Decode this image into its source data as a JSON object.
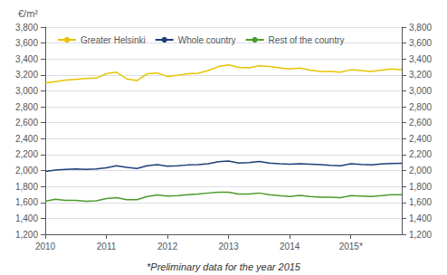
{
  "chart_data": {
    "type": "line",
    "ylabel": "€/m²",
    "annotations": [
      "*Preliminary data for the year 2015"
    ],
    "categories": [
      "2010",
      null,
      null,
      null,
      null,
      null,
      "2011",
      null,
      null,
      null,
      null,
      null,
      "2012",
      null,
      null,
      null,
      null,
      null,
      "2013",
      null,
      null,
      null,
      null,
      null,
      "2014",
      null,
      null,
      null,
      null,
      null,
      "2015*",
      null,
      null,
      null,
      null,
      null
    ],
    "series": [
      {
        "name": "Greater Helsinki",
        "color": "#E8C300",
        "values": [
          3100,
          3115,
          3135,
          3145,
          3155,
          3160,
          3215,
          3235,
          3150,
          3130,
          3215,
          3225,
          3180,
          3195,
          3215,
          3220,
          3255,
          3305,
          3325,
          3295,
          3290,
          3315,
          3305,
          3290,
          3275,
          3285,
          3260,
          3245,
          3245,
          3235,
          3265,
          3255,
          3245,
          3260,
          3275,
          3265
        ]
      },
      {
        "name": "Whole country",
        "color": "#1F3F7A",
        "values": [
          1990,
          2005,
          2015,
          2020,
          2015,
          2020,
          2035,
          2060,
          2040,
          2025,
          2060,
          2075,
          2055,
          2060,
          2070,
          2075,
          2085,
          2110,
          2120,
          2095,
          2100,
          2115,
          2095,
          2085,
          2080,
          2085,
          2080,
          2075,
          2065,
          2060,
          2085,
          2078,
          2072,
          2082,
          2088,
          2090
        ]
      },
      {
        "name": "Rest of the country",
        "color": "#4C9A2A",
        "values": [
          1615,
          1640,
          1625,
          1625,
          1615,
          1620,
          1648,
          1660,
          1635,
          1635,
          1675,
          1695,
          1680,
          1685,
          1698,
          1705,
          1718,
          1728,
          1728,
          1705,
          1705,
          1718,
          1698,
          1685,
          1675,
          1688,
          1675,
          1665,
          1665,
          1660,
          1685,
          1680,
          1675,
          1685,
          1698,
          1698
        ]
      }
    ],
    "ylim": [
      1200,
      3800
    ],
    "yticks": [
      1200,
      1400,
      1600,
      1800,
      2000,
      2200,
      2400,
      2600,
      2800,
      3000,
      3200,
      3400,
      3600,
      3800
    ],
    "y2lim": [
      1200,
      3800
    ],
    "y2ticks": [
      1200,
      1400,
      1600,
      1800,
      2000,
      2200,
      2400,
      2600,
      2800,
      3000,
      3200,
      3400,
      3600,
      3800
    ],
    "grid": true,
    "legend": "upper left"
  }
}
